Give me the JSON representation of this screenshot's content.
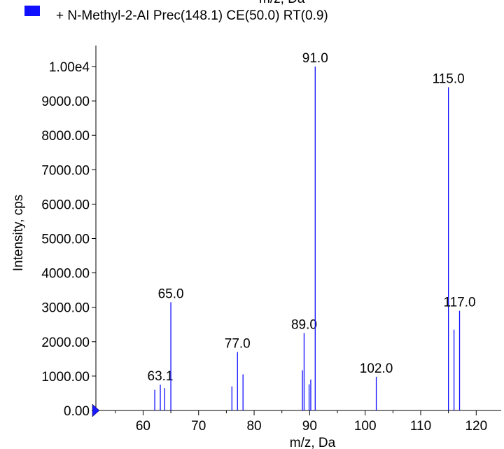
{
  "legend": {
    "label": "+ N-Methyl-2-AI Prec(148.1) CE(50.0) RT(0.9)",
    "swatch_color": "#1010ff",
    "clipped_xlabel": "m/z, Da"
  },
  "chart_data": {
    "type": "bar",
    "xlabel": "m/z, Da",
    "ylabel": "Intensity, cps",
    "xlim": [
      51.5,
      124.5
    ],
    "ylim": [
      0,
      10000
    ],
    "x_ticks": [
      60,
      70,
      80,
      90,
      100,
      110,
      120
    ],
    "x_tick_labels": [
      "60",
      "70",
      "80",
      "90",
      "100",
      "110",
      "120"
    ],
    "y_ticks": [
      0,
      1000,
      2000,
      3000,
      4000,
      5000,
      6000,
      7000,
      8000,
      9000,
      10000
    ],
    "y_tick_labels": [
      "0.00",
      "1000.00",
      "2000.00",
      "3000.00",
      "4000.00",
      "5000.00",
      "6000.00",
      "7000.00",
      "8000.00",
      "9000.00",
      "1.00e4"
    ],
    "series_color": "#1010ff",
    "peaks": [
      {
        "x": 62.1,
        "y": 600
      },
      {
        "x": 63.1,
        "y": 750,
        "label": "63.1"
      },
      {
        "x": 63.9,
        "y": 650
      },
      {
        "x": 65.0,
        "y": 3150,
        "label": "65.0"
      },
      {
        "x": 76.0,
        "y": 700
      },
      {
        "x": 77.0,
        "y": 1700,
        "label": "77.0"
      },
      {
        "x": 78.0,
        "y": 1050
      },
      {
        "x": 88.7,
        "y": 1170
      },
      {
        "x": 89.0,
        "y": 2250,
        "label": "89.0"
      },
      {
        "x": 89.9,
        "y": 760
      },
      {
        "x": 90.2,
        "y": 900
      },
      {
        "x": 91.0,
        "y": 10000,
        "label": "91.0"
      },
      {
        "x": 102.0,
        "y": 980,
        "label": "102.0"
      },
      {
        "x": 115.0,
        "y": 9400,
        "label": "115.0"
      },
      {
        "x": 116.0,
        "y": 2350
      },
      {
        "x": 117.0,
        "y": 2900,
        "label": "117.0"
      }
    ]
  }
}
